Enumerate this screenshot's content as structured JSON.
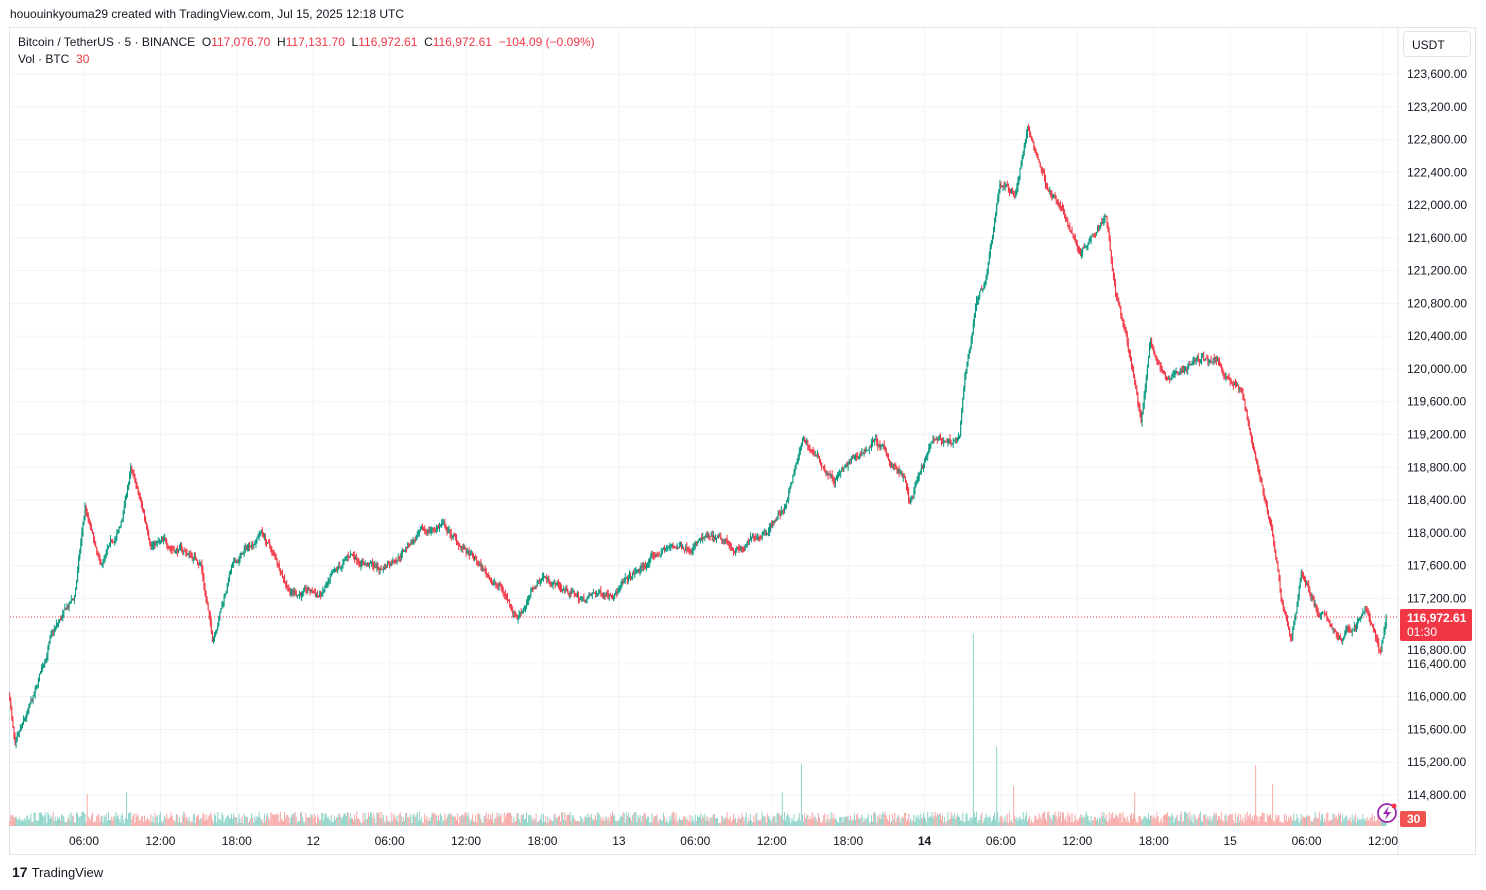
{
  "credit": "hououinkyouma29 created with TradingView.com, Jul 15, 2025 12:18 UTC",
  "legend": {
    "symbol": "Bitcoin / TetherUS · 5 · BINANCE",
    "o_label": "O",
    "o": "117,076.70",
    "h_label": "H",
    "h": "117,131.70",
    "l_label": "L",
    "l": "116,972.61",
    "c_label": "C",
    "c": "116,972.61",
    "change": "−104.09 (−0.09%)",
    "vol_label": "Vol · BTC",
    "vol": "30"
  },
  "currency_button": "USDT",
  "last_price_label": "116,972.61",
  "countdown": "01:30",
  "volume_badge": "30",
  "brand": "TradingView",
  "colors": {
    "up": "#089981",
    "down": "#f23645",
    "vol_up": "#8fd3c9",
    "vol_down": "#f7a9a7",
    "grid": "#f0f3fa"
  },
  "chart_data": {
    "type": "candlestick",
    "interval": "5m",
    "symbol": "BTCUSDT",
    "ylim": [
      114800,
      123800
    ],
    "y_ticks": [
      "114,800.00",
      "115,200.00",
      "115,600.00",
      "116,000.00",
      "116,400.00",
      "116,800.00",
      "117,200.00",
      "117,600.00",
      "118,000.00",
      "118,400.00",
      "118,800.00",
      "119,200.00",
      "119,600.00",
      "120,000.00",
      "120,400.00",
      "120,800.00",
      "121,200.00",
      "121,600.00",
      "122,000.00",
      "122,400.00",
      "122,800.00",
      "123,200.00",
      "123,600.00"
    ],
    "x_ticks": [
      {
        "label": "06:00",
        "t": "2025-07-11 06:00"
      },
      {
        "label": "12:00",
        "t": "2025-07-11 12:00"
      },
      {
        "label": "18:00",
        "t": "2025-07-11 18:00"
      },
      {
        "label": "12",
        "t": "2025-07-12 00:00"
      },
      {
        "label": "06:00",
        "t": "2025-07-12 06:00"
      },
      {
        "label": "12:00",
        "t": "2025-07-12 12:00"
      },
      {
        "label": "18:00",
        "t": "2025-07-12 18:00"
      },
      {
        "label": "13",
        "t": "2025-07-13 00:00"
      },
      {
        "label": "06:00",
        "t": "2025-07-13 06:00"
      },
      {
        "label": "12:00",
        "t": "2025-07-13 12:00"
      },
      {
        "label": "18:00",
        "t": "2025-07-13 18:00"
      },
      {
        "label": "14",
        "t": "2025-07-14 00:00"
      },
      {
        "label": "06:00",
        "t": "2025-07-14 06:00"
      },
      {
        "label": "12:00",
        "t": "2025-07-14 12:00"
      },
      {
        "label": "18:00",
        "t": "2025-07-14 18:00"
      },
      {
        "label": "15",
        "t": "2025-07-15 00:00"
      },
      {
        "label": "06:00",
        "t": "2025-07-15 06:00"
      },
      {
        "label": "12:00",
        "t": "2025-07-15 12:00"
      }
    ],
    "last_price": 116972.61,
    "approx_close_path": [
      [
        "2025-07-11 00:10",
        116000
      ],
      [
        "2025-07-11 00:35",
        115350
      ],
      [
        "2025-07-11 02:10",
        116000
      ],
      [
        "2025-07-11 03:20",
        116700
      ],
      [
        "2025-07-11 05:15",
        117200
      ],
      [
        "2025-07-11 06:05",
        118300
      ],
      [
        "2025-07-11 07:15",
        117550
      ],
      [
        "2025-07-11 08:50",
        118030
      ],
      [
        "2025-07-11 09:40",
        118770
      ],
      [
        "2025-07-11 11:15",
        117900
      ],
      [
        "2025-07-11 13:35",
        117800
      ],
      [
        "2025-07-11 15:10",
        117650
      ],
      [
        "2025-07-11 16:05",
        116700
      ],
      [
        "2025-07-11 17:30",
        117540
      ],
      [
        "2025-07-11 19:55",
        118030
      ],
      [
        "2025-07-11 22:15",
        117300
      ],
      [
        "2025-07-12 00:40",
        117240
      ],
      [
        "2025-07-12 03:00",
        117730
      ],
      [
        "2025-07-12 05:20",
        117550
      ],
      [
        "2025-07-12 07:45",
        117910
      ],
      [
        "2025-07-12 10:05",
        118100
      ],
      [
        "2025-07-12 12:30",
        117670
      ],
      [
        "2025-07-12 14:50",
        117300
      ],
      [
        "2025-07-12 16:00",
        116990
      ],
      [
        "2025-07-12 18:00",
        117480
      ],
      [
        "2025-07-12 21:10",
        117180
      ],
      [
        "2025-07-13 00:20",
        117360
      ],
      [
        "2025-07-13 03:30",
        117790
      ],
      [
        "2025-07-13 06:40",
        117910
      ],
      [
        "2025-07-13 09:45",
        117790
      ],
      [
        "2025-07-13 12:55",
        118280
      ],
      [
        "2025-07-13 14:30",
        119130
      ],
      [
        "2025-07-13 16:55",
        118640
      ],
      [
        "2025-07-13 20:05",
        119130
      ],
      [
        "2025-07-13 22:25",
        118640
      ],
      [
        "2025-07-13 22:50",
        118340
      ],
      [
        "2025-07-14 00:45",
        119130
      ],
      [
        "2025-07-14 02:45",
        119130
      ],
      [
        "2025-07-14 03:10",
        119860
      ],
      [
        "2025-07-14 04:05",
        120840
      ],
      [
        "2025-07-14 04:45",
        121080
      ],
      [
        "2025-07-14 05:55",
        122300
      ],
      [
        "2025-07-14 07:05",
        122120
      ],
      [
        "2025-07-14 08:05",
        122920
      ],
      [
        "2025-07-14 09:30",
        122300
      ],
      [
        "2025-07-14 11:05",
        121820
      ],
      [
        "2025-07-14 12:15",
        121450
      ],
      [
        "2025-07-14 14:15",
        121940
      ],
      [
        "2025-07-14 15:00",
        120960
      ],
      [
        "2025-07-14 16:10",
        120110
      ],
      [
        "2025-07-14 17:00",
        119370
      ],
      [
        "2025-07-14 17:45",
        120350
      ],
      [
        "2025-07-14 18:55",
        119860
      ],
      [
        "2025-07-14 21:20",
        120110
      ],
      [
        "2025-07-14 22:55",
        120110
      ],
      [
        "2025-07-15 00:50",
        119740
      ],
      [
        "2025-07-15 02:05",
        118890
      ],
      [
        "2025-07-15 03:15",
        118030
      ],
      [
        "2025-07-15 04:00",
        117180
      ],
      [
        "2025-07-15 04:50",
        116690
      ],
      [
        "2025-07-15 05:35",
        117550
      ],
      [
        "2025-07-15 06:50",
        117060
      ],
      [
        "2025-07-15 08:45",
        116690
      ],
      [
        "2025-07-15 10:45",
        117060
      ],
      [
        "2025-07-15 11:50",
        116510
      ],
      [
        "2025-07-15 12:15",
        116972.61
      ]
    ],
    "intraday_extremes": {
      "high": 123200,
      "low": 115250
    },
    "volume_baseline_btc": 120,
    "volume_spikes_btc": [
      [
        "2025-07-11 06:15",
        400
      ],
      [
        "2025-07-11 09:20",
        420
      ],
      [
        "2025-07-13 12:50",
        420
      ],
      [
        "2025-07-13 14:20",
        780
      ],
      [
        "2025-07-14 03:50",
        2400
      ],
      [
        "2025-07-14 05:40",
        990
      ],
      [
        "2025-07-14 07:00",
        500
      ],
      [
        "2025-07-14 16:30",
        420
      ],
      [
        "2025-07-15 02:00",
        760
      ],
      [
        "2025-07-15 03:20",
        520
      ]
    ]
  }
}
